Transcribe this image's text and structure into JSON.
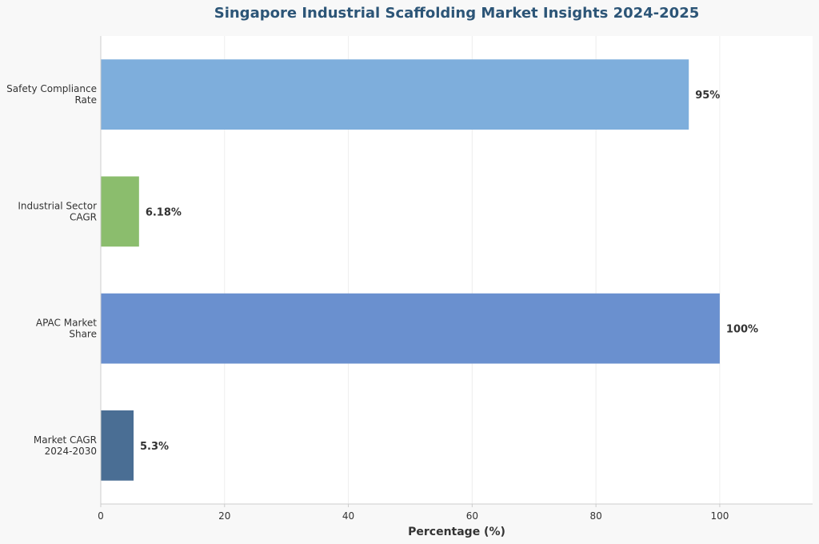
{
  "chart_data": {
    "type": "bar",
    "orientation": "horizontal",
    "title": "Singapore Industrial Scaffolding Market Insights 2024-2025",
    "xlabel": "Percentage (%)",
    "ylabel": "",
    "xlim": [
      0,
      115
    ],
    "xticks": [
      0,
      20,
      40,
      60,
      80,
      100
    ],
    "grid": true,
    "categories": [
      [
        "Safety Compliance",
        "Rate"
      ],
      [
        "Industrial Sector",
        "CAGR"
      ],
      [
        "APAC Market",
        "Share"
      ],
      [
        "Market CAGR",
        "2024-2030"
      ]
    ],
    "values": [
      95,
      6.18,
      100,
      5.3
    ],
    "value_labels": [
      "95%",
      "6.18%",
      "100%",
      "5.3%"
    ],
    "colors": [
      "#7eaedc",
      "#8bbd6d",
      "#6a90cf",
      "#4a6e94"
    ]
  }
}
